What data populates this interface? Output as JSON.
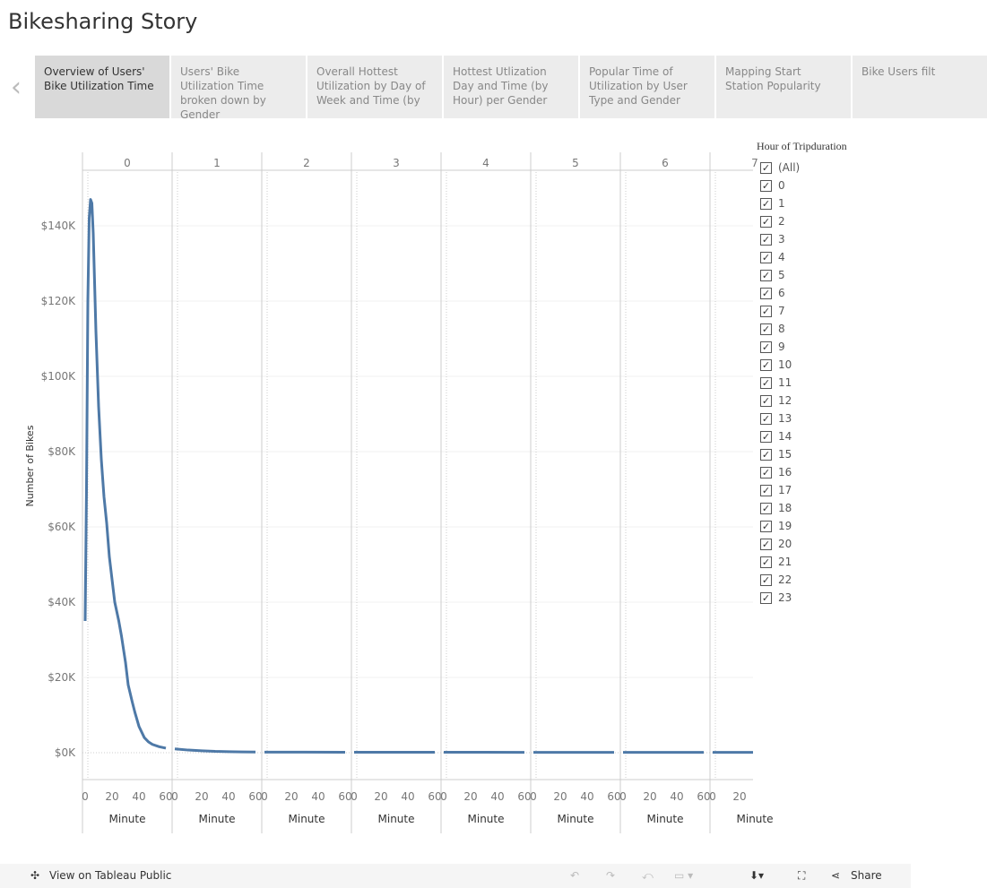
{
  "title": "Bikesharing Story",
  "tabs": [
    {
      "label": "Overview of Users' Bike Utilization Time",
      "active": true
    },
    {
      "label": "Users' Bike Utilization Time broken down by Gender"
    },
    {
      "label": "Overall Hottest Utilization by Day of Week and Time  (by"
    },
    {
      "label": "Hottest Utlization Day and Time (by Hour) per Gender"
    },
    {
      "label": "Popular Time of Utilization by User Type and Gender"
    },
    {
      "label": "Mapping Start Station Popularity"
    },
    {
      "label": "Bike Users filt"
    }
  ],
  "nav": {
    "prev": "‹",
    "next": "›"
  },
  "legend": {
    "title": "Hour of Tripduration",
    "items": [
      "(All)",
      "0",
      "1",
      "2",
      "3",
      "4",
      "5",
      "6",
      "7",
      "8",
      "9",
      "10",
      "11",
      "12",
      "13",
      "14",
      "15",
      "16",
      "17",
      "18",
      "19",
      "20",
      "21",
      "22",
      "23"
    ],
    "check": "✓"
  },
  "chart_data": {
    "type": "line",
    "ylabel": "Number of Bikes",
    "xlabel": "Minute",
    "ylim": [
      0,
      150000
    ],
    "yticks": [
      0,
      20000,
      40000,
      60000,
      80000,
      100000,
      120000,
      140000
    ],
    "ytick_labels": [
      "$0K",
      "$20K",
      "$40K",
      "$60K",
      "$80K",
      "$100K",
      "$120K",
      "$140K"
    ],
    "xticks": [
      0,
      20,
      40,
      60
    ],
    "panels": [
      "0",
      "1",
      "2",
      "3",
      "4",
      "5",
      "6",
      "7"
    ],
    "color": "#4e79a7",
    "series": [
      {
        "panel": "0",
        "x": [
          0,
          1,
          2,
          3,
          4,
          5,
          6,
          8,
          10,
          12,
          14,
          16,
          18,
          20,
          22,
          25,
          27,
          30,
          32,
          35,
          37,
          40,
          44,
          47,
          50,
          55,
          60
        ],
        "y": [
          35000,
          70000,
          120000,
          142000,
          147000,
          146000,
          138000,
          112000,
          92000,
          78000,
          68000,
          61000,
          52000,
          46000,
          40000,
          35000,
          31000,
          24000,
          18000,
          13500,
          10700,
          7000,
          4000,
          2900,
          2200,
          1600,
          1200
        ]
      },
      {
        "panel": "1",
        "x": [
          0,
          10,
          20,
          30,
          40,
          50,
          60
        ],
        "y": [
          1000,
          700,
          500,
          350,
          280,
          220,
          180
        ]
      },
      {
        "panel": "2",
        "x": [
          0,
          30,
          60
        ],
        "y": [
          150,
          150,
          120
        ]
      },
      {
        "panel": "3",
        "x": [
          0,
          30,
          60
        ],
        "y": [
          130,
          130,
          110
        ]
      },
      {
        "panel": "4",
        "x": [
          0,
          30,
          60
        ],
        "y": [
          110,
          110,
          100
        ]
      },
      {
        "panel": "5",
        "x": [
          0,
          30,
          60
        ],
        "y": [
          100,
          100,
          90
        ]
      },
      {
        "panel": "6",
        "x": [
          0,
          30,
          60
        ],
        "y": [
          90,
          90,
          80
        ]
      },
      {
        "panel": "7",
        "x": [
          0,
          30
        ],
        "y": [
          80,
          80
        ]
      }
    ]
  },
  "footer": {
    "view": "View on Tableau Public",
    "share": "Share"
  }
}
